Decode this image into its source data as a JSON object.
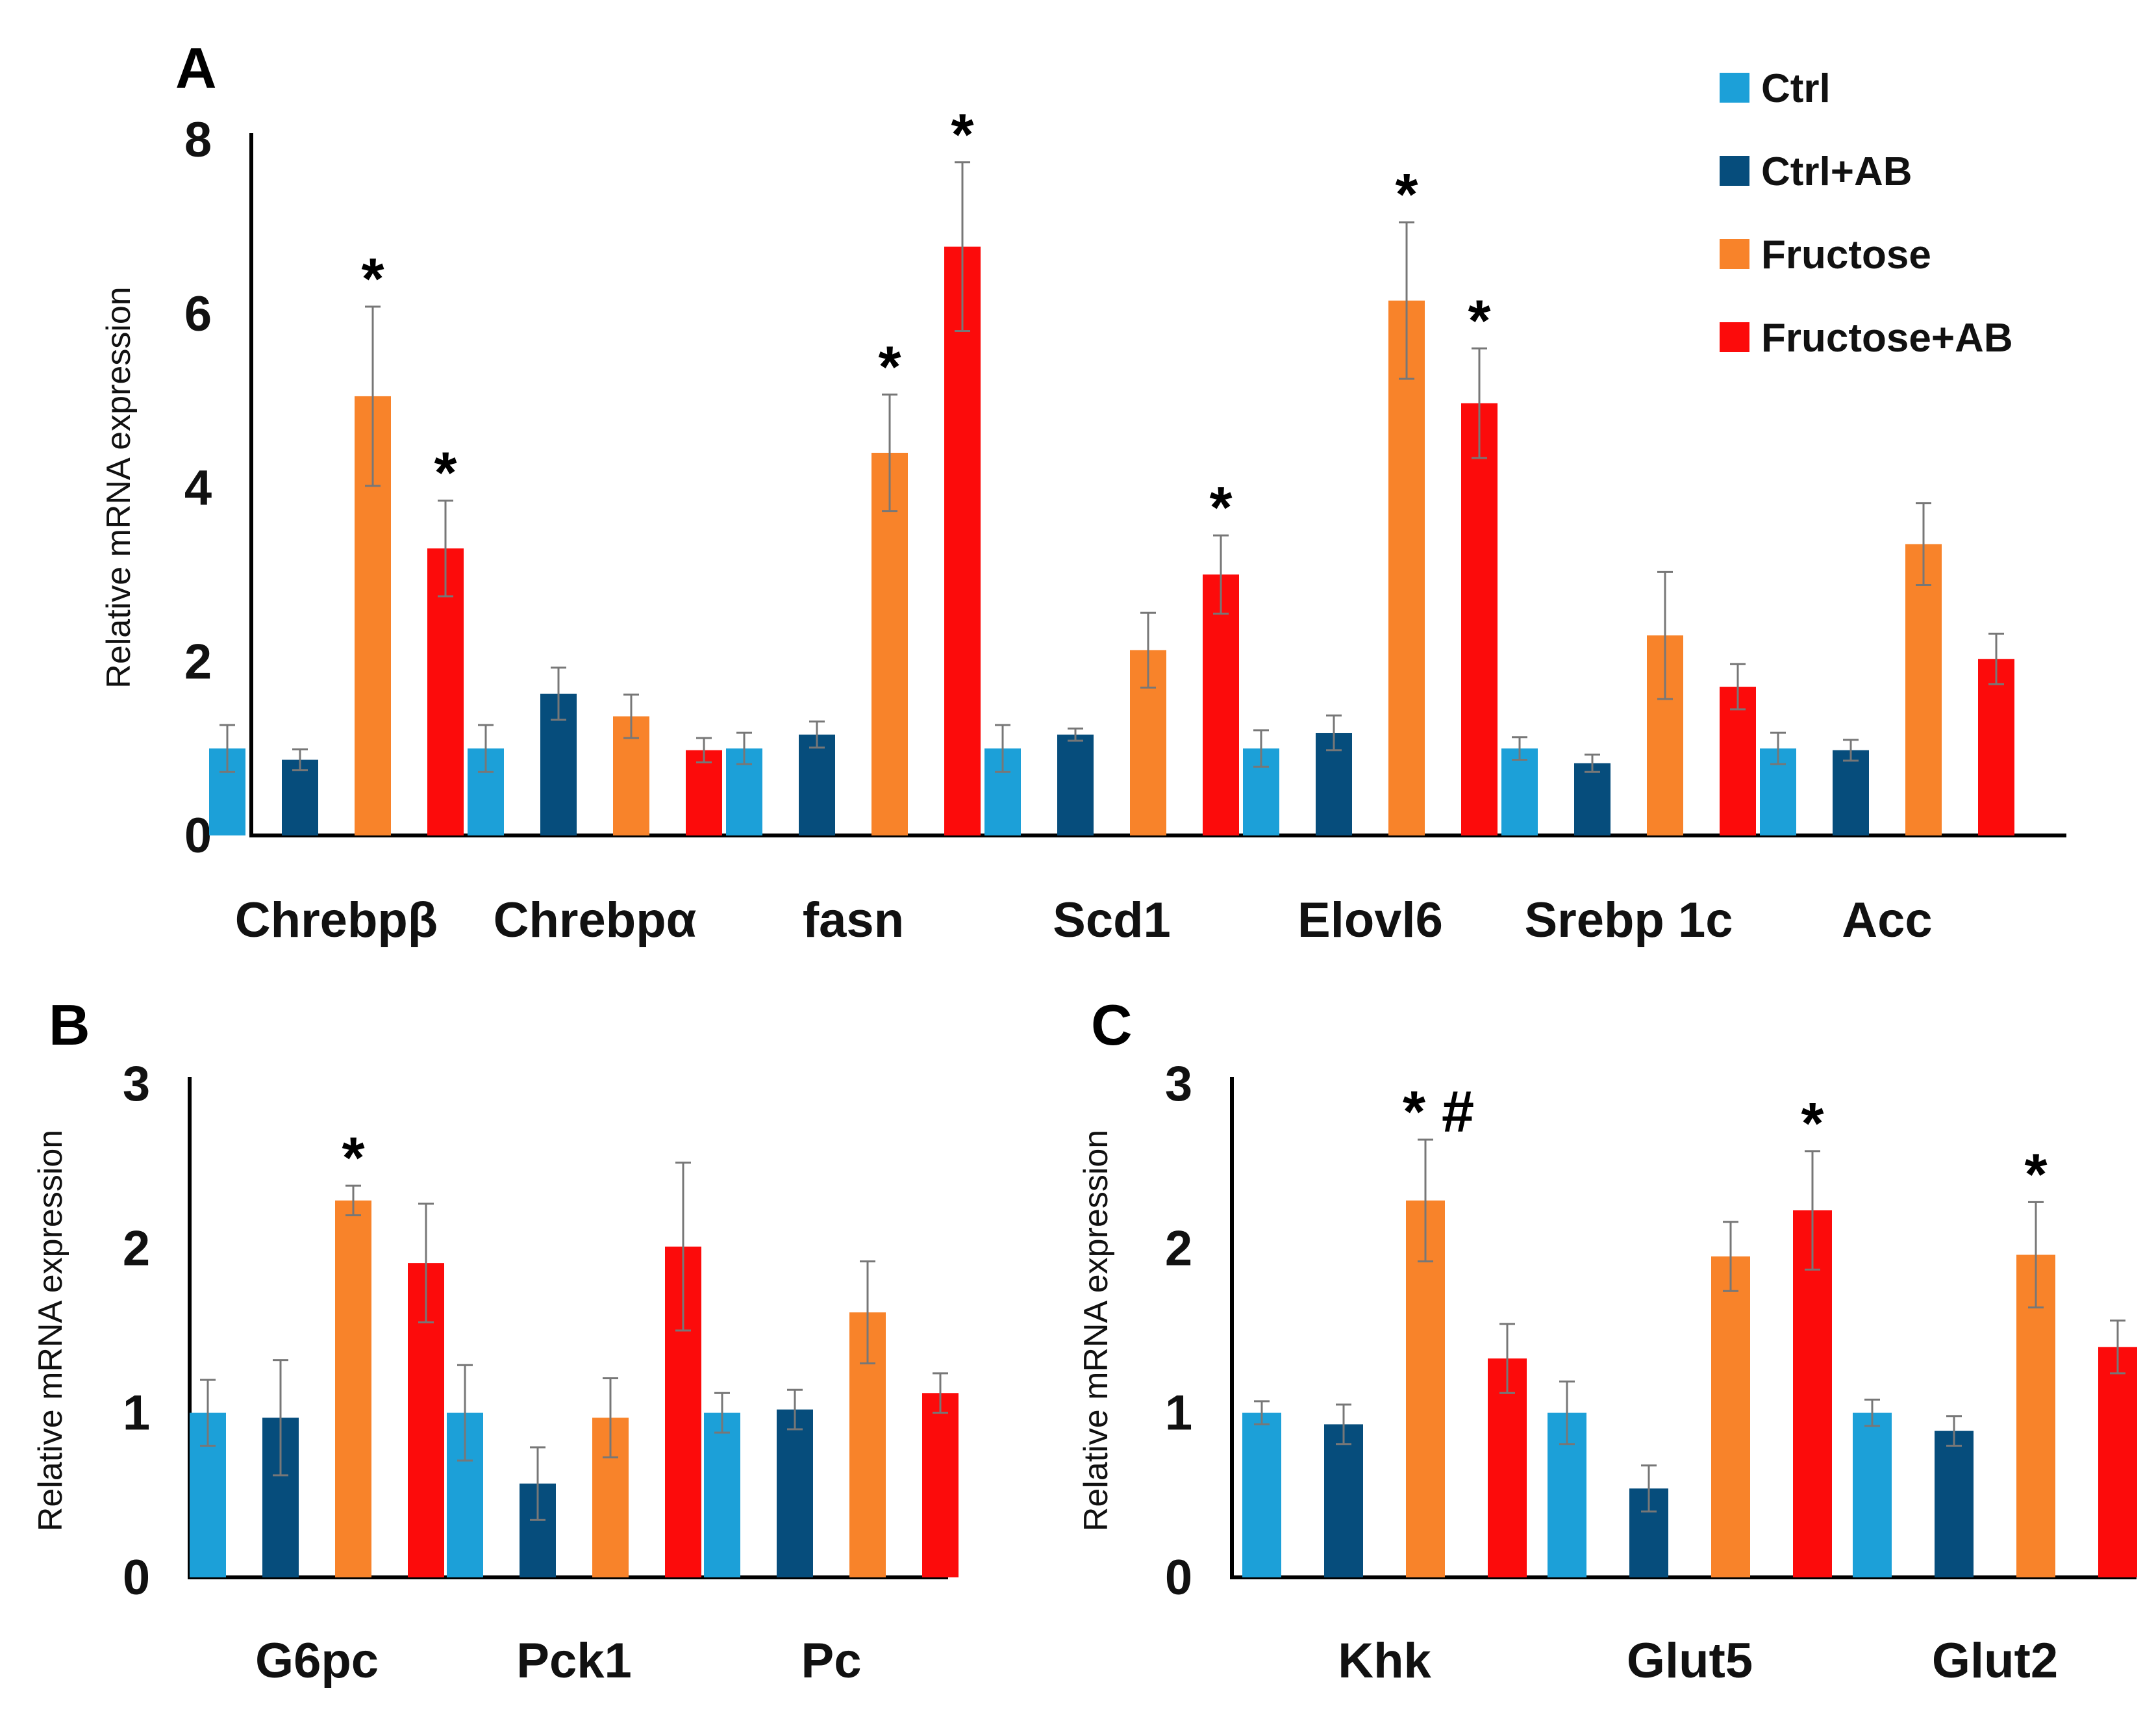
{
  "legend": {
    "series": [
      {
        "name": "Ctrl",
        "color": "#1ca0d8"
      },
      {
        "name": "Ctrl+AB",
        "color": "#064d7c"
      },
      {
        "name": "Fructose",
        "color": "#f8832a"
      },
      {
        "name": "Fructose+AB",
        "color": "#fc0b0b"
      }
    ]
  },
  "chart_data": [
    {
      "panel": "A",
      "type": "bar",
      "title": "",
      "xlabel": "",
      "ylabel": "Relative mRNA expression",
      "ylim": [
        0,
        8
      ],
      "yticks": [
        0,
        2,
        4,
        6,
        8
      ],
      "categories": [
        "Chrebpβ",
        "Chrebpα",
        "fasn",
        "Scd1",
        "Elovl6",
        "Srebp 1c",
        "Acc"
      ],
      "series": [
        {
          "name": "Ctrl",
          "values": [
            1.0,
            1.0,
            1.0,
            1.0,
            1.0,
            1.0,
            1.0
          ],
          "errors": [
            0.27,
            0.27,
            0.18,
            0.27,
            0.21,
            0.13,
            0.18
          ]
        },
        {
          "name": "Ctrl+AB",
          "values": [
            0.87,
            1.63,
            1.16,
            1.16,
            1.18,
            0.83,
            0.98
          ],
          "errors": [
            0.12,
            0.3,
            0.15,
            0.07,
            0.2,
            0.1,
            0.12
          ]
        },
        {
          "name": "Fructose",
          "values": [
            5.05,
            1.37,
            4.4,
            2.13,
            6.15,
            2.3,
            3.35
          ],
          "errors": [
            1.03,
            0.25,
            0.67,
            0.43,
            0.9,
            0.73,
            0.47
          ]
        },
        {
          "name": "Fructose+AB",
          "values": [
            3.3,
            0.98,
            6.77,
            3.0,
            4.97,
            1.71,
            2.03
          ],
          "errors": [
            0.55,
            0.14,
            0.97,
            0.45,
            0.63,
            0.26,
            0.29
          ]
        }
      ],
      "annotations": [
        {
          "category": "Chrebpβ",
          "series": "Fructose",
          "text": "*"
        },
        {
          "category": "Chrebpβ",
          "series": "Fructose+AB",
          "text": "*"
        },
        {
          "category": "fasn",
          "series": "Fructose",
          "text": "*"
        },
        {
          "category": "fasn",
          "series": "Fructose+AB",
          "text": "*"
        },
        {
          "category": "Scd1",
          "series": "Fructose+AB",
          "text": "*"
        },
        {
          "category": "Elovl6",
          "series": "Fructose",
          "text": "*"
        },
        {
          "category": "Elovl6",
          "series": "Fructose+AB",
          "text": "*"
        }
      ]
    },
    {
      "panel": "B",
      "type": "bar",
      "title": "",
      "xlabel": "",
      "ylabel": "Relative mRNA expression",
      "ylim": [
        0,
        3
      ],
      "yticks": [
        0,
        1,
        2,
        3
      ],
      "categories": [
        "G6pc",
        "Pck1",
        "Pc"
      ],
      "series": [
        {
          "name": "Ctrl",
          "values": [
            1.0,
            1.0,
            1.0
          ],
          "errors": [
            0.2,
            0.29,
            0.12
          ]
        },
        {
          "name": "Ctrl+AB",
          "values": [
            0.97,
            0.57,
            1.02
          ],
          "errors": [
            0.35,
            0.22,
            0.12
          ]
        },
        {
          "name": "Fructose",
          "values": [
            2.29,
            0.97,
            1.61
          ],
          "errors": [
            0.09,
            0.24,
            0.31
          ]
        },
        {
          "name": "Fructose+AB",
          "values": [
            1.91,
            2.01,
            1.12
          ],
          "errors": [
            0.36,
            0.51,
            0.12
          ]
        }
      ],
      "annotations": [
        {
          "category": "G6pc",
          "series": "Fructose",
          "text": "*"
        }
      ]
    },
    {
      "panel": "C",
      "type": "bar",
      "title": "",
      "xlabel": "",
      "ylabel": "Relative mRNA expression",
      "ylim": [
        0,
        3
      ],
      "yticks": [
        0,
        1,
        2,
        3
      ],
      "categories": [
        "Khk",
        "Glut5",
        "Glut2"
      ],
      "series": [
        {
          "name": "Ctrl",
          "values": [
            1.0,
            1.0,
            1.0
          ],
          "errors": [
            0.07,
            0.19,
            0.08
          ]
        },
        {
          "name": "Ctrl+AB",
          "values": [
            0.93,
            0.54,
            0.89
          ],
          "errors": [
            0.12,
            0.14,
            0.09
          ]
        },
        {
          "name": "Fructose",
          "values": [
            2.29,
            1.95,
            1.96
          ],
          "errors": [
            0.37,
            0.21,
            0.32
          ]
        },
        {
          "name": "Fructose+AB",
          "values": [
            1.33,
            2.23,
            1.4
          ],
          "errors": [
            0.21,
            0.36,
            0.16
          ]
        }
      ],
      "annotations": [
        {
          "category": "Khk",
          "series": "Fructose",
          "text": "* #"
        },
        {
          "category": "Glut5",
          "series": "Fructose+AB",
          "text": "*"
        },
        {
          "category": "Glut2",
          "series": "Fructose",
          "text": "*"
        }
      ]
    }
  ]
}
